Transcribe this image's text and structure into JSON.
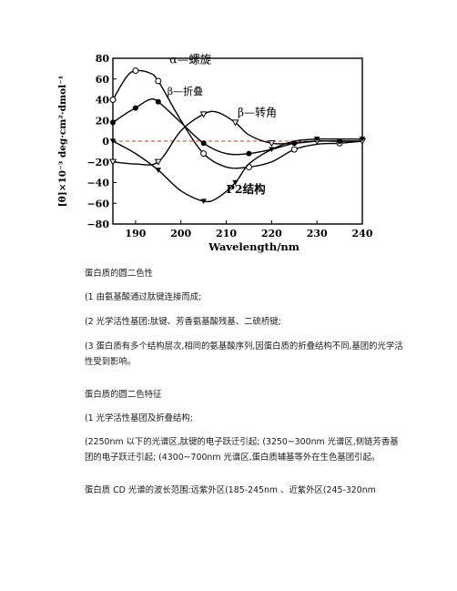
{
  "chart_data": {
    "type": "line",
    "title": "",
    "xlabel": "Wavelength/nm",
    "ylabel": "[θ]×10⁻³ deg·cm²·dmol⁻¹",
    "xlim": [
      185,
      240
    ],
    "ylim": [
      -80,
      80
    ],
    "x_ticks": [
      "190",
      "200",
      "210",
      "220",
      "230",
      "240"
    ],
    "y_ticks": [
      "80",
      "60",
      "40",
      "20",
      "0",
      "−20",
      "−40",
      "−60",
      "−80"
    ],
    "zero_line": "dashed red",
    "series": [
      {
        "name": "α—螺旋",
        "marker": "open-circle",
        "x": [
          185,
          188,
          190,
          193,
          195,
          200,
          205,
          210,
          215,
          220,
          225,
          230,
          235,
          240
        ],
        "y": [
          40,
          62,
          68,
          66,
          58,
          20,
          -12,
          -25,
          -25,
          -20,
          -8,
          -3,
          -2,
          0
        ]
      },
      {
        "name": "β—折叠",
        "marker": "filled-circle",
        "x": [
          185,
          188,
          190,
          193,
          195,
          200,
          205,
          210,
          215,
          220,
          225,
          230,
          235,
          240
        ],
        "y": [
          18,
          27,
          32,
          40,
          38,
          18,
          -2,
          -12,
          -12,
          -8,
          -2,
          0,
          0,
          0
        ]
      },
      {
        "name": "β—转角",
        "marker": "open-triangle",
        "x": [
          185,
          190,
          195,
          200,
          205,
          208,
          212,
          215,
          220,
          225,
          230,
          235,
          240
        ],
        "y": [
          -20,
          -22,
          -20,
          10,
          26,
          28,
          18,
          6,
          -2,
          -2,
          0,
          0,
          0
        ]
      },
      {
        "name": "P2结构",
        "marker": "filled-triangle",
        "x": [
          185,
          190,
          195,
          200,
          205,
          208,
          212,
          215,
          220,
          225,
          230,
          235,
          240
        ],
        "y": [
          0,
          -12,
          -28,
          -48,
          -58,
          -55,
          -40,
          -22,
          -8,
          0,
          2,
          2,
          2
        ]
      }
    ],
    "labels": [
      "α—螺旋",
      "β—折叠",
      "β—转角",
      "P2结构"
    ]
  },
  "document": {
    "paragraphs": [
      "蛋白质的圆二色性",
      "(1 由氨基酸通过肽键连接而成;",
      "(2 光学活性基团:肽键、芳香氨基酸残基、二硫桥键;",
      "(3 蛋白质有多个结构层次,相同的氨基酸序列,因蛋白质的折叠结构不同,基团的光学活 性受到影响。",
      "蛋白质的圆二色特征",
      "(1 光学活性基团及折叠结构;",
      "(2250nm 以下的光谱区,肽键的电子跃迁引起; (3250~300nm 光谱区,侧链芳香基团的电子跃迁引起; (4300~700nm 光谱区,蛋白质辅基等外在生色基团引起。",
      "蛋白质 CD 光谱的波长范围:远紫外区(185-245nm 、近紫外区(245-320nm"
    ]
  }
}
